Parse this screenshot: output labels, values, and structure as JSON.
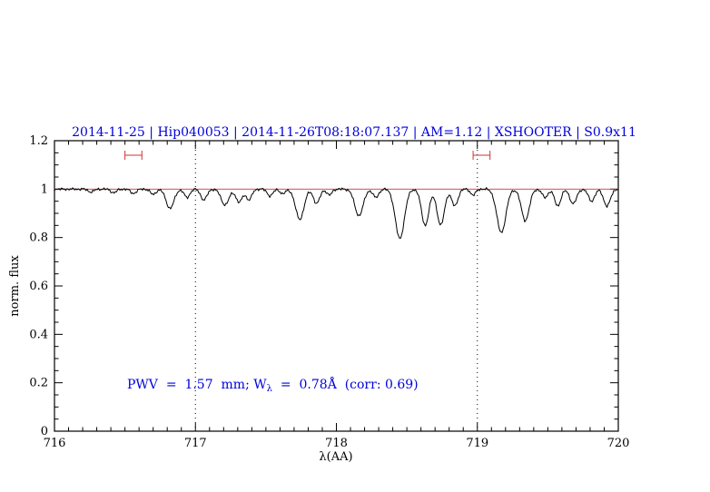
{
  "colors": {
    "blue": "#0000dd",
    "red": "#cc3333",
    "ink": "#000000",
    "paper": "#ffffff"
  },
  "chart_data": {
    "type": "line",
    "title": "2014-11-25 | Hip040053 | 2014-11-26T08:18:07.137 | AM=1.12 | XSHOOTER | S0.9x11",
    "xlabel": "λ(AA)",
    "ylabel": "norm. flux",
    "xlim": [
      716,
      720
    ],
    "ylim": [
      0,
      1.2
    ],
    "xticks": [
      716,
      717,
      718,
      719,
      720
    ],
    "xtick_labels": [
      "716",
      "717",
      "718",
      "719",
      "720"
    ],
    "x_minor_step": 0.1,
    "yticks": [
      0,
      0.2,
      0.4,
      0.6,
      0.8,
      1,
      1.2
    ],
    "ytick_labels": [
      "0",
      "0.2",
      "0.4",
      "0.6",
      "0.8",
      "1",
      "1.2"
    ],
    "y_minor_step": 0.05,
    "grid": "dotted-vertical-only",
    "legend": "none",
    "dotted_vlines": [
      717,
      719
    ],
    "continuum_level": 1.0,
    "range_markers": [
      {
        "x1": 716.5,
        "x2": 716.62,
        "y": 1.14
      },
      {
        "x1": 718.97,
        "x2": 719.09,
        "y": 1.14
      }
    ],
    "annotation": {
      "prefix": "PWV  =  1.57  mm; W",
      "sub": "λ",
      "suffix": "  =  0.78Å  (corr: 0.69)",
      "x": 716.52,
      "y": 0.18
    },
    "spectrum": {
      "baseline": 1.0,
      "noise_amplitude": 0.0035,
      "sample_step": 0.008,
      "absorption_features": [
        [
          716.26,
          0.012,
          0.02
        ],
        [
          716.42,
          0.015,
          0.02
        ],
        [
          716.56,
          0.018,
          0.02
        ],
        [
          716.7,
          0.022,
          0.02
        ],
        [
          716.82,
          0.08,
          0.028
        ],
        [
          716.94,
          0.035,
          0.02
        ],
        [
          717.06,
          0.045,
          0.022
        ],
        [
          717.21,
          0.065,
          0.028
        ],
        [
          717.31,
          0.055,
          0.022
        ],
        [
          717.38,
          0.045,
          0.02
        ],
        [
          717.53,
          0.028,
          0.02
        ],
        [
          717.62,
          0.02,
          0.018
        ],
        [
          717.74,
          0.125,
          0.03
        ],
        [
          717.86,
          0.06,
          0.022
        ],
        [
          717.95,
          0.025,
          0.018
        ],
        [
          718.16,
          0.11,
          0.03
        ],
        [
          718.28,
          0.035,
          0.02
        ],
        [
          718.45,
          0.205,
          0.032
        ],
        [
          718.63,
          0.15,
          0.026
        ],
        [
          718.74,
          0.15,
          0.026
        ],
        [
          718.84,
          0.07,
          0.022
        ],
        [
          718.97,
          0.025,
          0.018
        ],
        [
          719.17,
          0.18,
          0.032
        ],
        [
          719.34,
          0.13,
          0.028
        ],
        [
          719.48,
          0.035,
          0.02
        ],
        [
          719.57,
          0.07,
          0.022
        ],
        [
          719.68,
          0.06,
          0.024
        ],
        [
          719.81,
          0.05,
          0.022
        ],
        [
          719.92,
          0.07,
          0.024
        ]
      ]
    }
  }
}
